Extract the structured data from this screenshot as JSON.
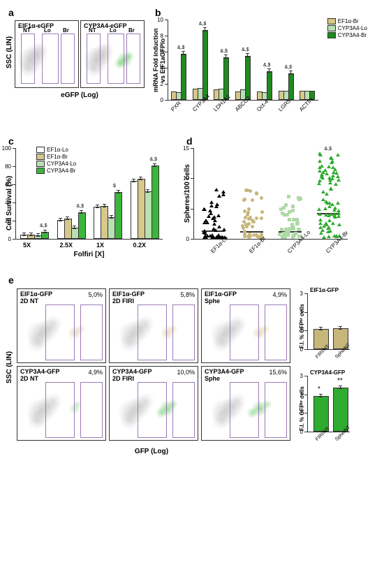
{
  "panel_a": {
    "label": "a",
    "plots": [
      {
        "title": "EIF1α-eGFP",
        "gates": [
          "NT",
          "Lo",
          "Br"
        ],
        "green_intensity": "none"
      },
      {
        "title": "CYP3A4-eGFP",
        "gates": [
          "NT",
          "Lo",
          "Br"
        ],
        "green_intensity": "strong"
      }
    ],
    "y_axis": "SSC (LIN)",
    "x_axis": "eGFP (Log)"
  },
  "panel_b": {
    "label": "b",
    "y_axis": "mRNA Fold induction\nvs EIF1aGFPlo",
    "y_ticks": [
      0,
      2,
      4,
      6,
      8,
      10
    ],
    "legend": [
      {
        "name": "EF1α-Br",
        "color": "#d7c88a"
      },
      {
        "name": "CYP3A4-Lo",
        "color": "#b9e0b3"
      },
      {
        "name": "CYP3A4-Br",
        "color": "#1f8b1f"
      }
    ],
    "categories": [
      "PXR",
      "CYP3A4",
      "LDH1A1",
      "ABCG2",
      "Oct-4",
      "LGR5",
      "ACTIN"
    ],
    "series": {
      "EF1α-Br": [
        0.9,
        1.2,
        1.1,
        0.9,
        0.9,
        1.0,
        1.0
      ],
      "CYP3A4-Lo": [
        0.8,
        1.3,
        1.2,
        1.1,
        0.8,
        1.0,
        1.0
      ],
      "CYP3A4-Br": [
        5.6,
        8.5,
        5.1,
        5.3,
        3.4,
        3.1,
        1.0
      ]
    },
    "sig_marks": [
      "&,$",
      "&,$",
      "&,$",
      "&,$",
      "&,$",
      "&,$",
      ""
    ]
  },
  "panel_c": {
    "label": "c",
    "y_axis": "Cell Survival (%)",
    "x_axis": "Folfiri [X]",
    "y_ticks": [
      0,
      20,
      40,
      60,
      80,
      100
    ],
    "x_cats": [
      "5X",
      "2.5X",
      "1X",
      "0.2X"
    ],
    "legend": [
      {
        "name": "EF1α-Lo",
        "color": "#ffffff"
      },
      {
        "name": "EF1α-Br",
        "color": "#d7c88a"
      },
      {
        "name": "CYP3A4-Lo",
        "color": "#b9e0b3"
      },
      {
        "name": "CYP3A4-Br",
        "color": "#3cb53c"
      }
    ],
    "values": {
      "EF1α-Lo": [
        3,
        19,
        34,
        62
      ],
      "EF1α-Br": [
        3,
        21,
        35,
        65
      ],
      "CYP3A4-Lo": [
        2,
        11,
        22,
        51
      ],
      "CYP3A4-Br": [
        6,
        28,
        50,
        79
      ]
    },
    "sig": [
      "&,$",
      "&,$",
      "$",
      "&,$"
    ]
  },
  "panel_d": {
    "label": "d",
    "y_axis": "Spheres/100 cells",
    "y_ticks": [
      0,
      5,
      10,
      15
    ],
    "categories": [
      "EF1α-Lo",
      "EF1α-Br",
      "CYP3A4-Lo",
      "CYP3A4-Br"
    ],
    "colors": [
      "#000000",
      "#c7b67a",
      "#b0d8a8",
      "#2fab2f"
    ],
    "shapes": [
      "triangle",
      "circle",
      "square",
      "triangle"
    ],
    "median": [
      1.2,
      1.0,
      1.0,
      4.0
    ],
    "max_spread": [
      8,
      8,
      7,
      14
    ],
    "sig": "&,$"
  },
  "panel_e": {
    "label": "e",
    "y_axis": "SSC (LIN)",
    "x_axis": "GFP (Log)",
    "rows": [
      {
        "row_title": "EIF1α-GFP",
        "plots": [
          {
            "sub": "2D NT",
            "pct": "5,0%",
            "green": "tan-light"
          },
          {
            "sub": "2D FIRI",
            "pct": "5,8%",
            "green": "tan-light"
          },
          {
            "sub": "Sphe",
            "pct": "4,9%",
            "green": "tan-light"
          }
        ]
      },
      {
        "row_title": "CYP3A4-GFP",
        "plots": [
          {
            "sub": "2D NT",
            "pct": "4,9%",
            "green": "green-light"
          },
          {
            "sub": "2D FIRI",
            "pct": "10,0%",
            "green": "green-med"
          },
          {
            "sub": "Sphe",
            "pct": "15,6%",
            "green": "green-strong"
          }
        ]
      }
    ],
    "right_bars": {
      "y_axis": "F.I. % GFPᵇʳ cells",
      "y_ticks": [
        0,
        1,
        2,
        3
      ],
      "top": {
        "title": "EIF1α-GFP",
        "color": "#c7b67a",
        "vals": [
          1.0,
          1.05
        ],
        "labels": [
          "FIRI/NT",
          "Sphe/NT"
        ],
        "sig": [
          "",
          ""
        ]
      },
      "bot": {
        "title": "CYP3A4-GFP",
        "color": "#2fab2f",
        "vals": [
          1.85,
          2.3
        ],
        "labels": [
          "FIRI/NT",
          "Sphe/NT"
        ],
        "sig": [
          "*",
          "**"
        ]
      }
    }
  }
}
